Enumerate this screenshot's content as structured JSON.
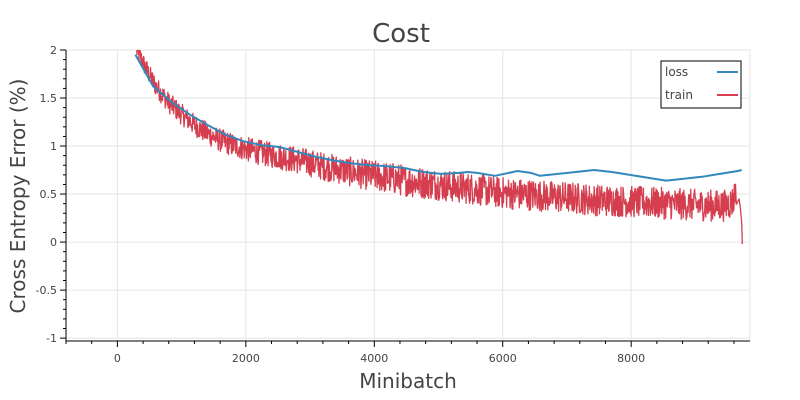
{
  "chart_data": {
    "type": "line",
    "title": "Cost",
    "xlabel": "Minibatch",
    "ylabel": "Cross Entropy Error (%)",
    "xlim": [
      -800,
      9850
    ],
    "ylim": [
      -1.03,
      2.0
    ],
    "grid": true,
    "legend_position": "top-right",
    "x_ticks": [
      0,
      2000,
      4000,
      6000,
      8000
    ],
    "x_tick_labels": [
      "0",
      "2000",
      "4000",
      "6000",
      "8000"
    ],
    "y_ticks": [
      2,
      1.5,
      1,
      0.5,
      0,
      -0.5,
      -1
    ],
    "y_tick_labels": [
      "2",
      "1.5",
      "1",
      "0.5",
      "0",
      "-0.5",
      "-1"
    ],
    "series": [
      {
        "name": "loss",
        "color": "#3288bd",
        "x": [
          280,
          560,
          840,
          1120,
          1400,
          1680,
          1960,
          2240,
          2520,
          2800,
          3080,
          3360,
          3640,
          3920,
          4200,
          4480,
          4760,
          5040,
          5320,
          5460,
          5600,
          5880,
          6160,
          6230,
          6440,
          6580,
          6860,
          7140,
          7420,
          7700,
          7980,
          8260,
          8540,
          8820,
          9100,
          9380,
          9660,
          9720
        ],
        "y": [
          1.95,
          1.62,
          1.46,
          1.33,
          1.22,
          1.12,
          1.05,
          1.01,
          0.99,
          0.94,
          0.89,
          0.85,
          0.82,
          0.8,
          0.79,
          0.77,
          0.73,
          0.71,
          0.72,
          0.73,
          0.72,
          0.69,
          0.73,
          0.74,
          0.72,
          0.69,
          0.71,
          0.73,
          0.75,
          0.73,
          0.7,
          0.67,
          0.64,
          0.66,
          0.68,
          0.71,
          0.74,
          0.75
        ]
      },
      {
        "name": "train",
        "color": "#d53e4f",
        "x": [
          300,
          450,
          600,
          800,
          1000,
          1200,
          1400,
          1600,
          1800,
          2000,
          2300,
          2600,
          2900,
          3200,
          3500,
          3800,
          4100,
          4400,
          4700,
          5000,
          5300,
          5600,
          5900,
          6200,
          6500,
          6800,
          7100,
          7400,
          7700,
          8000,
          8300,
          8600,
          8900,
          9200,
          9450,
          9580,
          9640,
          9680,
          9700,
          9720,
          9730
        ],
        "y": [
          2.0,
          1.8,
          1.62,
          1.45,
          1.33,
          1.22,
          1.13,
          1.06,
          1.01,
          0.97,
          0.92,
          0.88,
          0.84,
          0.79,
          0.75,
          0.71,
          0.68,
          0.65,
          0.62,
          0.6,
          0.57,
          0.55,
          0.52,
          0.5,
          0.49,
          0.47,
          0.46,
          0.44,
          0.43,
          0.42,
          0.41,
          0.4,
          0.39,
          0.38,
          0.38,
          0.42,
          0.55,
          0.45,
          0.35,
          0.2,
          -0.02
        ]
      }
    ]
  }
}
